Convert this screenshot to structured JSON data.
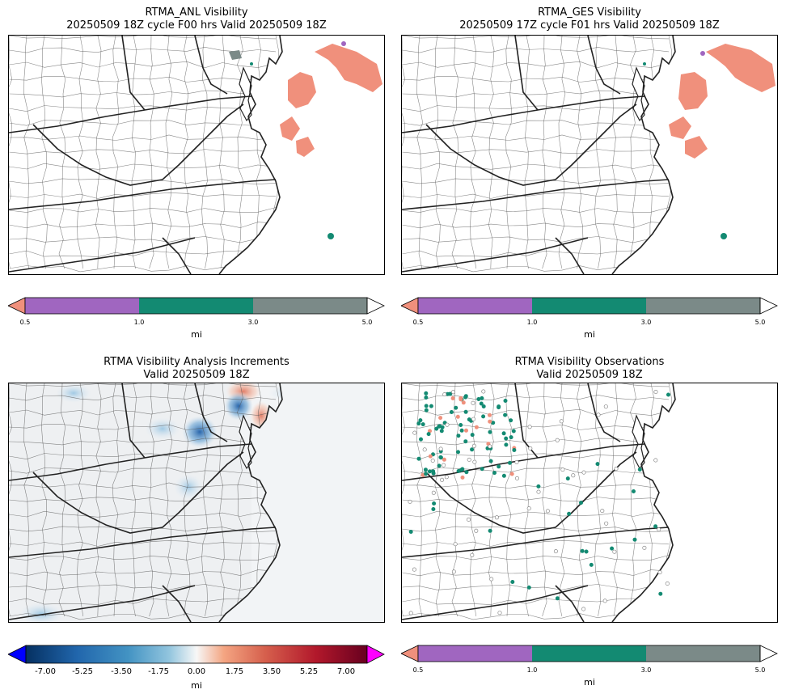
{
  "panels": [
    {
      "title_line1": "RTMA_ANL Visibility",
      "title_line2": "20250509 18Z cycle F00 hrs Valid 20250509 18Z",
      "colorbar": {
        "ticks": [
          "0.5",
          "1.0",
          "3.0",
          "5.0"
        ],
        "unit": "mi"
      }
    },
    {
      "title_line1": "RTMA_GES Visibility",
      "title_line2": "20250509 17Z cycle F01 hrs Valid 20250509 18Z",
      "colorbar": {
        "ticks": [
          "0.5",
          "1.0",
          "3.0",
          "5.0"
        ],
        "unit": "mi"
      }
    },
    {
      "title_line1": "RTMA Visibility Analysis Increments",
      "title_line2": "Valid 20250509 18Z",
      "colorbar": {
        "ticks": [
          "-7.00",
          "-5.25",
          "-3.50",
          "-1.75",
          "0.00",
          "1.75",
          "3.50",
          "5.25",
          "7.00"
        ],
        "unit": "mi"
      }
    },
    {
      "title_line1": "RTMA Visibility Observations",
      "title_line2": "Valid 20250509 18Z",
      "colorbar": {
        "ticks": [
          "0.5",
          "1.0",
          "3.0",
          "5.0"
        ],
        "unit": "mi"
      }
    }
  ],
  "colors": {
    "lt_0_5": "#f0907c",
    "c_0_5_1": "#a066c0",
    "c_1_3": "#138a72",
    "c_3_5": "#7b8a88",
    "gt_5": "#ffffff",
    "diverging_min": "#0000ff",
    "diverging_max": "#ff00ff",
    "county_lines": "#555555",
    "state_lines": "#222222"
  }
}
